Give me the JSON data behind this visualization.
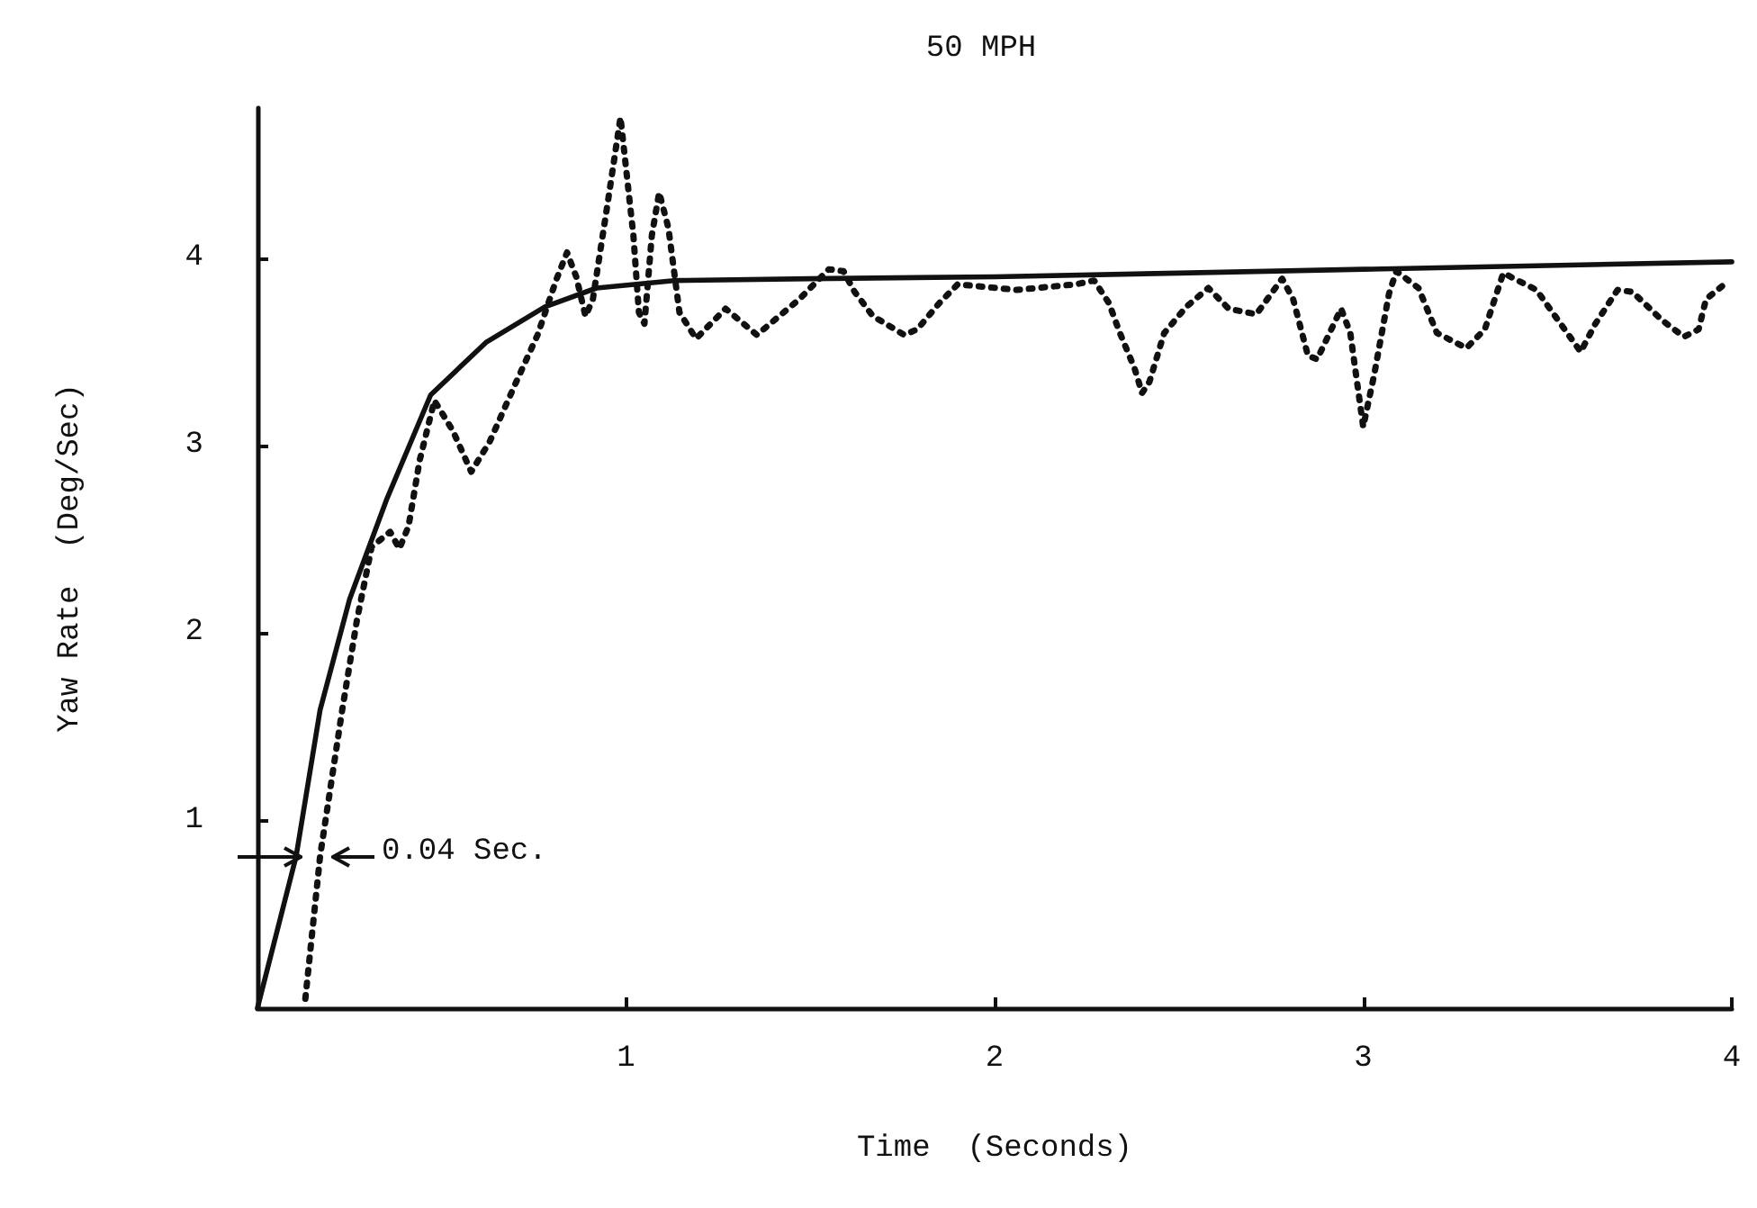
{
  "chart_data": {
    "type": "line",
    "title": "50 MPH",
    "xlabel": "Time  (Seconds)",
    "ylabel": "Yaw Rate  (Deg/Sec)",
    "xlim": [
      0,
      4
    ],
    "xticks": [
      1,
      2,
      3,
      4
    ],
    "ylim": [
      0,
      4.8
    ],
    "yticks": [
      1,
      2,
      3,
      4
    ],
    "grid": false,
    "marker": "none",
    "annotations": [
      "0.04 Sec."
    ],
    "series": [
      {
        "color": "#111111",
        "line_style": "solid",
        "x": [
          0,
          0.105,
          0.17,
          0.25,
          0.35,
          0.47,
          0.62,
          0.78,
          0.92,
          1.13,
          1.5,
          2,
          2.5,
          3,
          3.5,
          4
        ],
        "values": [
          0,
          0.81,
          1.59,
          2.18,
          2.71,
          3.27,
          3.55,
          3.74,
          3.84,
          3.88,
          3.89,
          3.9,
          3.92,
          3.94,
          3.96,
          3.98
        ]
      },
      {
        "color": "#111111",
        "line_style": "dotted",
        "x": [
          0.13,
          0.17,
          0.23,
          0.27,
          0.31,
          0.36,
          0.385,
          0.41,
          0.44,
          0.48,
          0.53,
          0.58,
          0.63,
          0.7,
          0.76,
          0.81,
          0.84,
          0.865,
          0.89,
          0.91,
          0.95,
          0.985,
          1.02,
          1.035,
          1.05,
          1.07,
          1.09,
          1.115,
          1.145,
          1.19,
          1.27,
          1.355,
          1.47,
          1.51,
          1.55,
          1.59,
          1.62,
          1.67,
          1.755,
          1.79,
          1.85,
          1.9,
          2.06,
          2.22,
          2.27,
          2.31,
          2.34,
          2.38,
          2.4,
          2.42,
          2.46,
          2.52,
          2.58,
          2.635,
          2.71,
          2.78,
          2.81,
          2.85,
          2.875,
          2.94,
          2.965,
          3.0,
          3.03,
          3.07,
          3.09,
          3.15,
          3.2,
          3.28,
          3.33,
          3.38,
          3.47,
          3.59,
          3.63,
          3.69,
          3.73,
          3.81,
          3.87,
          3.91,
          3.93,
          3.98
        ],
        "values": [
          0.05,
          0.81,
          1.59,
          2.07,
          2.46,
          2.54,
          2.45,
          2.57,
          2.92,
          3.24,
          3.08,
          2.86,
          3.02,
          3.33,
          3.59,
          3.88,
          4.03,
          3.9,
          3.69,
          3.78,
          4.29,
          4.75,
          4.12,
          3.71,
          3.65,
          4.12,
          4.35,
          4.16,
          3.71,
          3.57,
          3.73,
          3.59,
          3.78,
          3.86,
          3.94,
          3.93,
          3.82,
          3.69,
          3.59,
          3.62,
          3.76,
          3.86,
          3.83,
          3.86,
          3.88,
          3.76,
          3.6,
          3.41,
          3.28,
          3.34,
          3.6,
          3.74,
          3.84,
          3.73,
          3.7,
          3.89,
          3.78,
          3.48,
          3.46,
          3.73,
          3.6,
          3.1,
          3.38,
          3.81,
          3.93,
          3.84,
          3.6,
          3.52,
          3.62,
          3.92,
          3.83,
          3.5,
          3.65,
          3.83,
          3.82,
          3.67,
          3.58,
          3.62,
          3.78,
          3.86
        ]
      }
    ]
  }
}
